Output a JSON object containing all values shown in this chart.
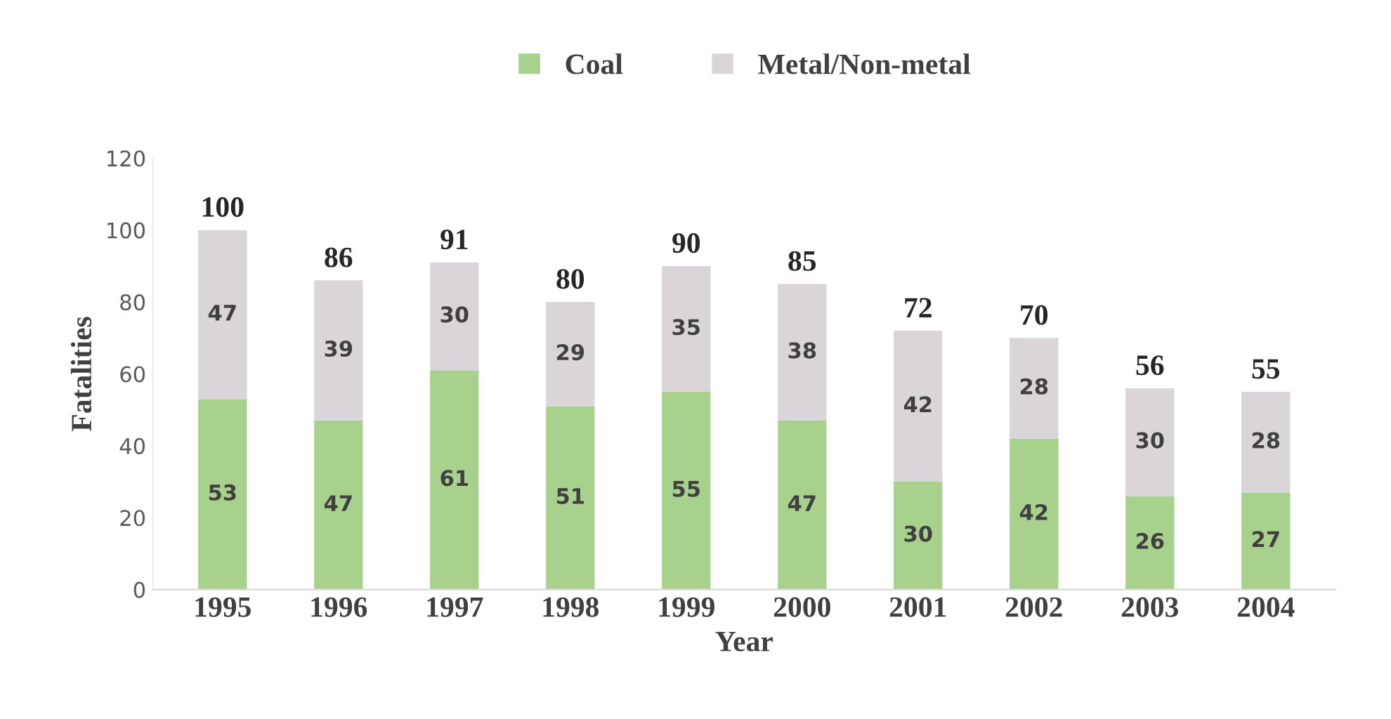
{
  "chart_data": {
    "type": "bar",
    "stacked": true,
    "xlabel": "Year",
    "ylabel": "Fatalities",
    "categories": [
      "1995",
      "1996",
      "1997",
      "1998",
      "1999",
      "2000",
      "2001",
      "2002",
      "2003",
      "2004"
    ],
    "series": [
      {
        "name": "Coal",
        "color": "#a9d18e",
        "values": [
          53,
          47,
          61,
          51,
          55,
          47,
          30,
          42,
          26,
          27
        ]
      },
      {
        "name": "Metal/Non-metal",
        "color": "#d9d5d8",
        "values": [
          47,
          39,
          30,
          29,
          35,
          38,
          42,
          28,
          30,
          28
        ]
      }
    ],
    "totals": [
      "100",
      "86",
      "91",
      "80",
      "90",
      "85",
      "72",
      "70",
      "56",
      "55"
    ],
    "data_labels": true,
    "ylim": [
      0,
      120
    ],
    "yticks": [
      0,
      20,
      40,
      60,
      80,
      100,
      120
    ],
    "grid": false,
    "legend": "top"
  }
}
